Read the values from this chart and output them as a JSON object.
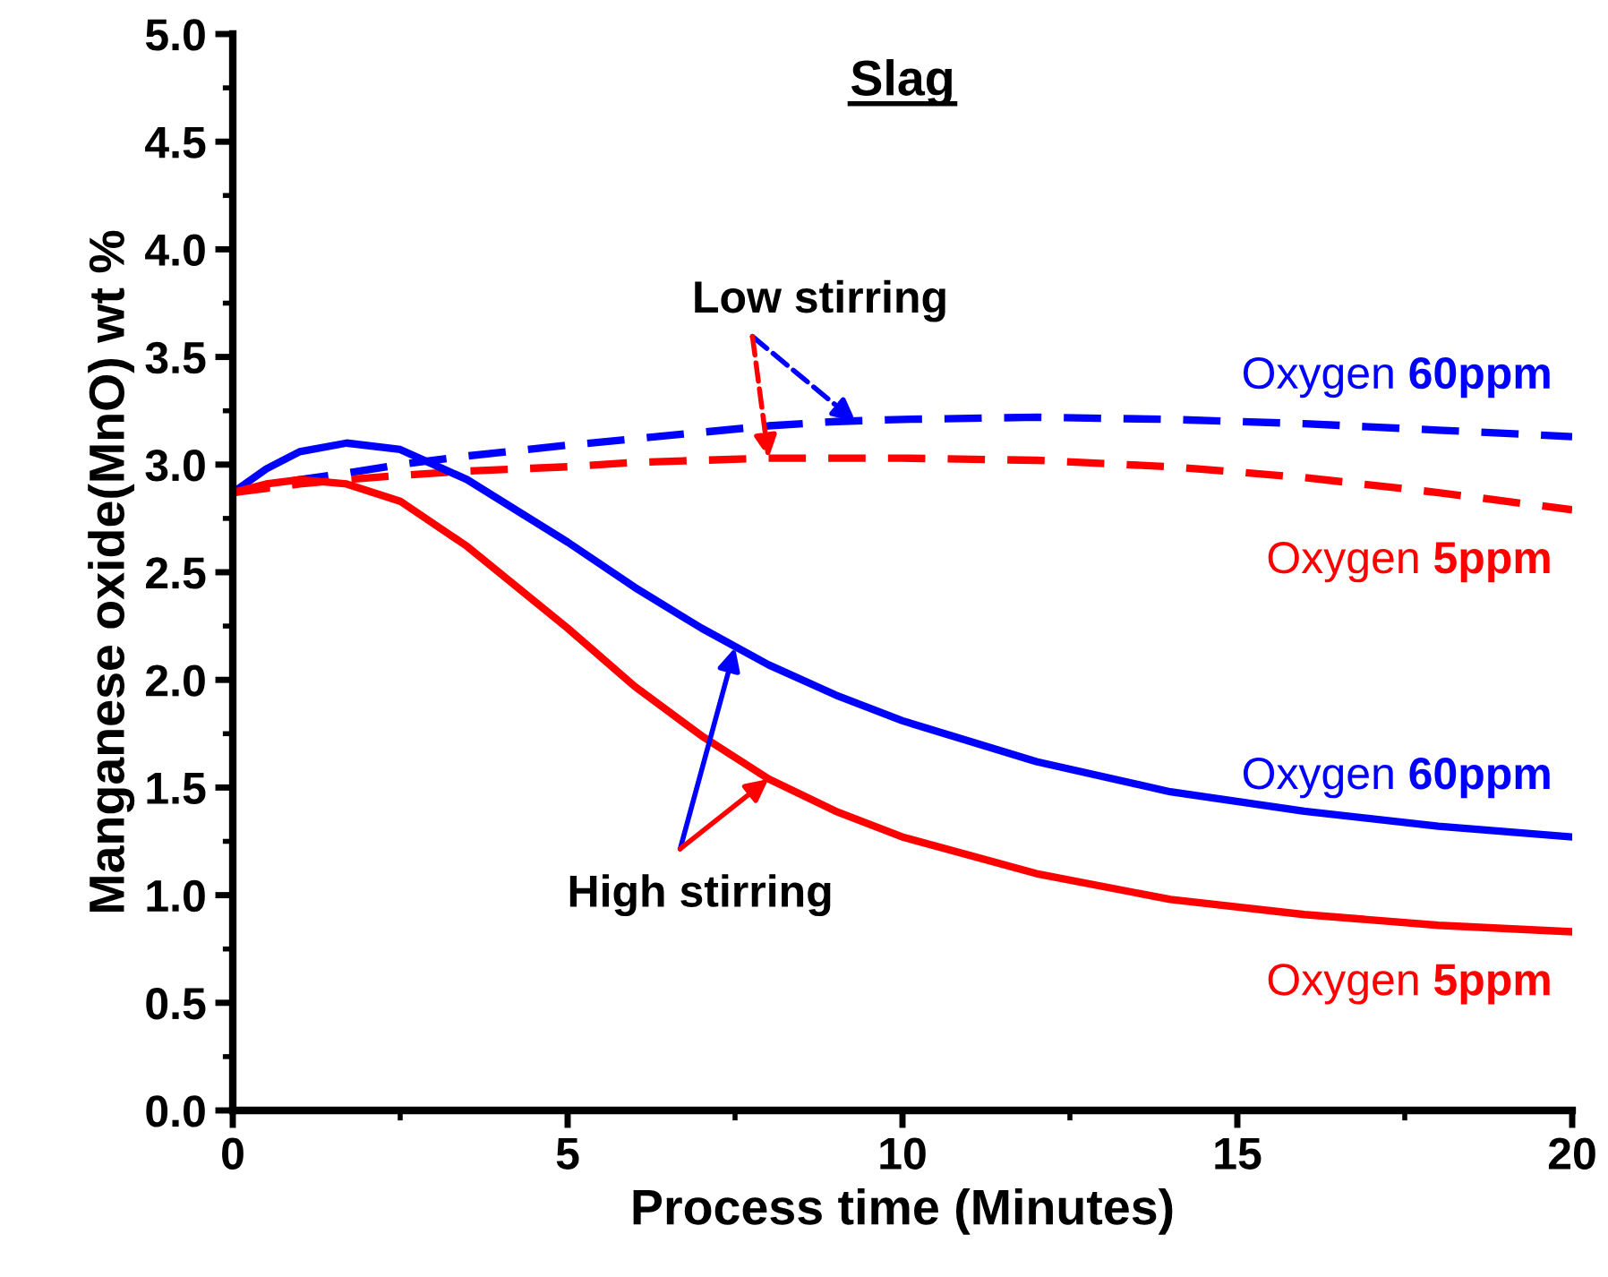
{
  "chart_data": {
    "type": "line",
    "title": "Slag",
    "xlabel": "Process time (Minutes)",
    "ylabel": "Manganese oxide(MnO) wt %",
    "x": [
      0,
      0.5,
      1,
      1.7,
      2.5,
      3.5,
      5,
      6,
      7,
      8,
      9,
      10,
      12,
      14,
      16,
      18,
      20
    ],
    "xlim": [
      0,
      20
    ],
    "xticks": [
      0,
      5,
      10,
      15,
      20
    ],
    "ylim": [
      0,
      5
    ],
    "yticks": [
      {
        "value": 0,
        "label": "0.0"
      },
      0.5,
      {
        "value": 1,
        "label": "1.0"
      },
      1.5,
      {
        "value": 2,
        "label": "2.0"
      },
      2.5,
      {
        "value": 3,
        "label": "3.0"
      },
      3.5,
      {
        "value": 4,
        "label": "4.0"
      },
      4.5,
      {
        "value": 5,
        "label": "5.0"
      }
    ],
    "grid": false,
    "legend": false,
    "marker": "none",
    "series": [
      {
        "name": "Oxygen 60ppm",
        "color": "#0000ff",
        "line_style": "dashed",
        "values": [
          2.87,
          2.9,
          2.93,
          2.96,
          3.0,
          3.04,
          3.09,
          3.12,
          3.15,
          3.18,
          3.2,
          3.21,
          3.22,
          3.21,
          3.19,
          3.16,
          3.13
        ]
      },
      {
        "name": "Oxygen 5ppm",
        "color": "#ff0000",
        "line_style": "dashed",
        "values": [
          2.87,
          2.89,
          2.91,
          2.93,
          2.95,
          2.97,
          2.99,
          3.01,
          3.02,
          3.03,
          3.03,
          3.03,
          3.02,
          2.99,
          2.94,
          2.87,
          2.79
        ]
      },
      {
        "name": "Oxygen 60ppm",
        "color": "#0000ff",
        "line_style": "solid",
        "values": [
          2.87,
          2.98,
          3.06,
          3.1,
          3.07,
          2.93,
          2.64,
          2.43,
          2.24,
          2.07,
          1.93,
          1.81,
          1.62,
          1.48,
          1.39,
          1.32,
          1.27
        ]
      },
      {
        "name": "Oxygen 5ppm",
        "color": "#ff0000",
        "line_style": "solid",
        "values": [
          2.87,
          2.91,
          2.93,
          2.91,
          2.83,
          2.62,
          2.24,
          1.97,
          1.74,
          1.54,
          1.39,
          1.27,
          1.1,
          0.98,
          0.91,
          0.86,
          0.83
        ]
      }
    ],
    "annotations": [
      {
        "text": "Low stirring",
        "x": 9.3,
        "y": 3.2
      },
      {
        "text": "High stirring",
        "x": 7.5,
        "y": 2.15
      }
    ]
  }
}
